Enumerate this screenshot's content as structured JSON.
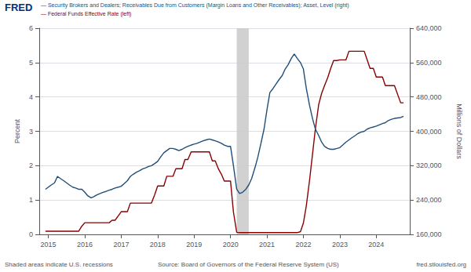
{
  "chart_data": {
    "type": "line",
    "title": "FRED",
    "annotations": [
      "Shaded areas indicate U.S. recessions",
      "Source: Board of Governors of the Federal Reserve System (US)",
      "fred.stlouisfed.org"
    ],
    "x": [
      2014.92,
      2015.0,
      2015.08,
      2015.17,
      2015.25,
      2015.33,
      2015.42,
      2015.5,
      2015.58,
      2015.67,
      2015.75,
      2015.83,
      2015.92,
      2016.0,
      2016.08,
      2016.17,
      2016.25,
      2016.33,
      2016.42,
      2016.5,
      2016.58,
      2016.67,
      2016.75,
      2016.83,
      2016.92,
      2017.0,
      2017.08,
      2017.17,
      2017.25,
      2017.33,
      2017.42,
      2017.5,
      2017.58,
      2017.67,
      2017.75,
      2017.83,
      2017.92,
      2018.0,
      2018.08,
      2018.17,
      2018.25,
      2018.33,
      2018.42,
      2018.5,
      2018.58,
      2018.67,
      2018.75,
      2018.83,
      2018.92,
      2019.0,
      2019.08,
      2019.17,
      2019.25,
      2019.33,
      2019.42,
      2019.5,
      2019.58,
      2019.67,
      2019.75,
      2019.83,
      2019.92,
      2020.0,
      2020.08,
      2020.17,
      2020.25,
      2020.33,
      2020.42,
      2020.5,
      2020.58,
      2020.67,
      2020.75,
      2020.83,
      2020.92,
      2021.0,
      2021.08,
      2021.17,
      2021.25,
      2021.33,
      2021.42,
      2021.5,
      2021.58,
      2021.67,
      2021.75,
      2021.83,
      2021.92,
      2022.0,
      2022.08,
      2022.17,
      2022.25,
      2022.33,
      2022.42,
      2022.5,
      2022.58,
      2022.67,
      2022.75,
      2022.83,
      2022.92,
      2023.0,
      2023.08,
      2023.17,
      2023.25,
      2023.33,
      2023.42,
      2023.5,
      2023.58,
      2023.67,
      2023.75,
      2023.83,
      2023.92,
      2024.0,
      2024.08,
      2024.17,
      2024.25,
      2024.33,
      2024.42,
      2024.5,
      2024.67,
      2024.75
    ],
    "series": [
      {
        "name": "— Federal Funds Effective Rate (left)",
        "color": "#8b0000",
        "axis": "y",
        "values": [
          0.09,
          0.09,
          0.09,
          0.09,
          0.09,
          0.09,
          0.09,
          0.09,
          0.09,
          0.09,
          0.09,
          0.09,
          0.24,
          0.34,
          0.34,
          0.34,
          0.34,
          0.34,
          0.34,
          0.34,
          0.34,
          0.34,
          0.41,
          0.41,
          0.54,
          0.66,
          0.66,
          0.66,
          0.91,
          0.91,
          0.91,
          0.91,
          0.91,
          0.91,
          0.91,
          0.91,
          1.16,
          1.41,
          1.41,
          1.41,
          1.69,
          1.69,
          1.69,
          1.91,
          1.91,
          1.91,
          2.18,
          2.18,
          2.4,
          2.4,
          2.4,
          2.4,
          2.4,
          2.4,
          2.4,
          2.14,
          2.14,
          1.9,
          1.75,
          1.55,
          1.55,
          1.55,
          0.65,
          0.06,
          0.05,
          0.05,
          0.05,
          0.05,
          0.05,
          0.05,
          0.05,
          0.05,
          0.05,
          0.05,
          0.05,
          0.05,
          0.05,
          0.05,
          0.05,
          0.05,
          0.05,
          0.05,
          0.05,
          0.05,
          0.08,
          0.33,
          0.83,
          1.58,
          2.33,
          3.08,
          3.78,
          4.1,
          4.33,
          4.57,
          4.83,
          5.06,
          5.06,
          5.08,
          5.08,
          5.08,
          5.33,
          5.33,
          5.33,
          5.33,
          5.33,
          5.33,
          5.08,
          4.83,
          4.83,
          4.58,
          4.58,
          4.58,
          4.33,
          4.33,
          4.33,
          4.33,
          3.83,
          3.83
        ]
      },
      {
        "name": "— Security Brokers and Dealers; Receivables Due from Customers (Margin Loans and Other Receivables); Asset, Level (right)",
        "color": "#1f4e79",
        "axis": "y2",
        "values": [
          265000,
          270000,
          275000,
          280000,
          295000,
          290000,
          285000,
          280000,
          275000,
          270000,
          268000,
          265000,
          265000,
          258000,
          250000,
          245000,
          248000,
          252000,
          255000,
          258000,
          260000,
          263000,
          265000,
          268000,
          270000,
          272000,
          278000,
          285000,
          295000,
          300000,
          305000,
          308000,
          312000,
          315000,
          318000,
          320000,
          325000,
          330000,
          340000,
          350000,
          355000,
          360000,
          360000,
          358000,
          355000,
          358000,
          362000,
          365000,
          368000,
          370000,
          372000,
          375000,
          378000,
          380000,
          382000,
          380000,
          378000,
          375000,
          372000,
          368000,
          365000,
          365000,
          320000,
          265000,
          255000,
          258000,
          265000,
          275000,
          290000,
          315000,
          340000,
          370000,
          405000,
          450000,
          490000,
          500000,
          510000,
          520000,
          530000,
          545000,
          555000,
          570000,
          580000,
          570000,
          560000,
          545000,
          500000,
          460000,
          430000,
          405000,
          390000,
          375000,
          365000,
          360000,
          358000,
          358000,
          360000,
          362000,
          368000,
          375000,
          380000,
          385000,
          390000,
          395000,
          398000,
          400000,
          405000,
          408000,
          410000,
          412000,
          415000,
          418000,
          420000,
          425000,
          428000,
          430000,
          432000,
          435000
        ]
      }
    ],
    "shaded_ranges": [
      {
        "from": 2020.17,
        "to": 2020.5,
        "color": "#cccccc"
      }
    ],
    "ylabel": "Percent",
    "y2label": "Millions of Dollars",
    "xlim": [
      2014.75,
      2024.92
    ],
    "xticks": [
      2015,
      2016,
      2017,
      2018,
      2019,
      2020,
      2021,
      2022,
      2023,
      2024
    ],
    "ylim": [
      0,
      6
    ],
    "yticks": [
      0,
      1,
      2,
      3,
      4,
      5,
      6
    ],
    "y2lim": [
      160000,
      640000
    ],
    "y2ticks": [
      {
        "value": 160000,
        "label": "160,000"
      },
      {
        "value": 240000,
        "label": "240,000"
      },
      {
        "value": 320000,
        "label": "320,000"
      },
      {
        "value": 400000,
        "label": "400,000"
      },
      {
        "value": 480000,
        "label": "480,000"
      },
      {
        "value": 560000,
        "label": "560,000"
      },
      {
        "value": 640000,
        "label": "640,000"
      }
    ],
    "grid": true
  }
}
